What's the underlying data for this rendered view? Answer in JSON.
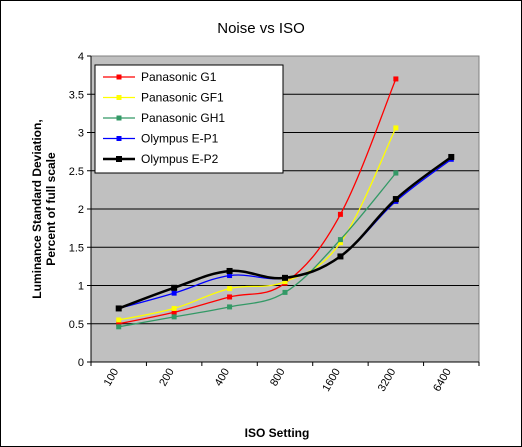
{
  "chart_data": {
    "type": "line",
    "title": "Noise vs ISO",
    "xlabel": "ISO Setting",
    "ylabel": [
      "Luminance Standard Deviation,",
      "Percent of full scale"
    ],
    "x": [
      "100",
      "200",
      "400",
      "800",
      "1600",
      "3200",
      "6400"
    ],
    "ylim": [
      0,
      4
    ],
    "yticks": [
      "0",
      "0.5",
      "1",
      "1.5",
      "2",
      "2.5",
      "3",
      "3.5",
      "4"
    ],
    "grid": "horizontal",
    "legend_position": "top-left",
    "series": [
      {
        "name": "Panasonic G1",
        "color": "#ff0000",
        "values": [
          0.5,
          0.65,
          0.85,
          1.03,
          1.93,
          3.7,
          null
        ]
      },
      {
        "name": "Panasonic GF1",
        "color": "#ffff00",
        "values": [
          0.55,
          0.7,
          0.96,
          1.05,
          1.56,
          3.06,
          null
        ]
      },
      {
        "name": "Panasonic GH1",
        "color": "#339966",
        "values": [
          0.46,
          0.59,
          0.72,
          0.91,
          1.6,
          2.47,
          null
        ]
      },
      {
        "name": "Olympus E-P1",
        "color": "#0000ff",
        "values": [
          0.7,
          0.9,
          1.13,
          1.1,
          1.38,
          2.1,
          2.65
        ]
      },
      {
        "name": "Olympus E-P2",
        "color": "#000000",
        "values": [
          0.7,
          0.97,
          1.19,
          1.1,
          1.38,
          2.13,
          2.68
        ]
      }
    ]
  }
}
